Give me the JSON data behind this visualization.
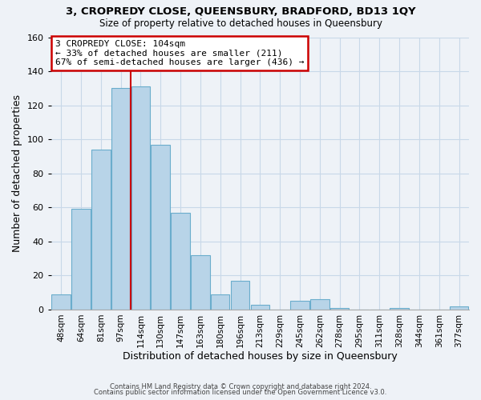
{
  "title": "3, CROPREDY CLOSE, QUEENSBURY, BRADFORD, BD13 1QY",
  "subtitle": "Size of property relative to detached houses in Queensbury",
  "xlabel": "Distribution of detached houses by size in Queensbury",
  "ylabel": "Number of detached properties",
  "bar_labels": [
    "48sqm",
    "64sqm",
    "81sqm",
    "97sqm",
    "114sqm",
    "130sqm",
    "147sqm",
    "163sqm",
    "180sqm",
    "196sqm",
    "213sqm",
    "229sqm",
    "245sqm",
    "262sqm",
    "278sqm",
    "295sqm",
    "311sqm",
    "328sqm",
    "344sqm",
    "361sqm",
    "377sqm"
  ],
  "bar_values": [
    9,
    59,
    94,
    130,
    131,
    97,
    57,
    32,
    9,
    17,
    3,
    0,
    5,
    6,
    1,
    0,
    0,
    1,
    0,
    0,
    2
  ],
  "bar_color": "#b8d4e8",
  "bar_edge_color": "#6aadcc",
  "annotation_text_line1": "3 CROPREDY CLOSE: 104sqm",
  "annotation_text_line2": "← 33% of detached houses are smaller (211)",
  "annotation_text_line3": "67% of semi-detached houses are larger (436) →",
  "annotation_box_color": "white",
  "annotation_box_edge": "#cc0000",
  "red_line_x": 3.5,
  "red_line_color": "#cc0000",
  "ylim": [
    0,
    160
  ],
  "yticks": [
    0,
    20,
    40,
    60,
    80,
    100,
    120,
    140,
    160
  ],
  "grid_color": "#c8d8e8",
  "background_color": "#eef2f7",
  "footer_line1": "Contains HM Land Registry data © Crown copyright and database right 2024.",
  "footer_line2": "Contains public sector information licensed under the Open Government Licence v3.0."
}
